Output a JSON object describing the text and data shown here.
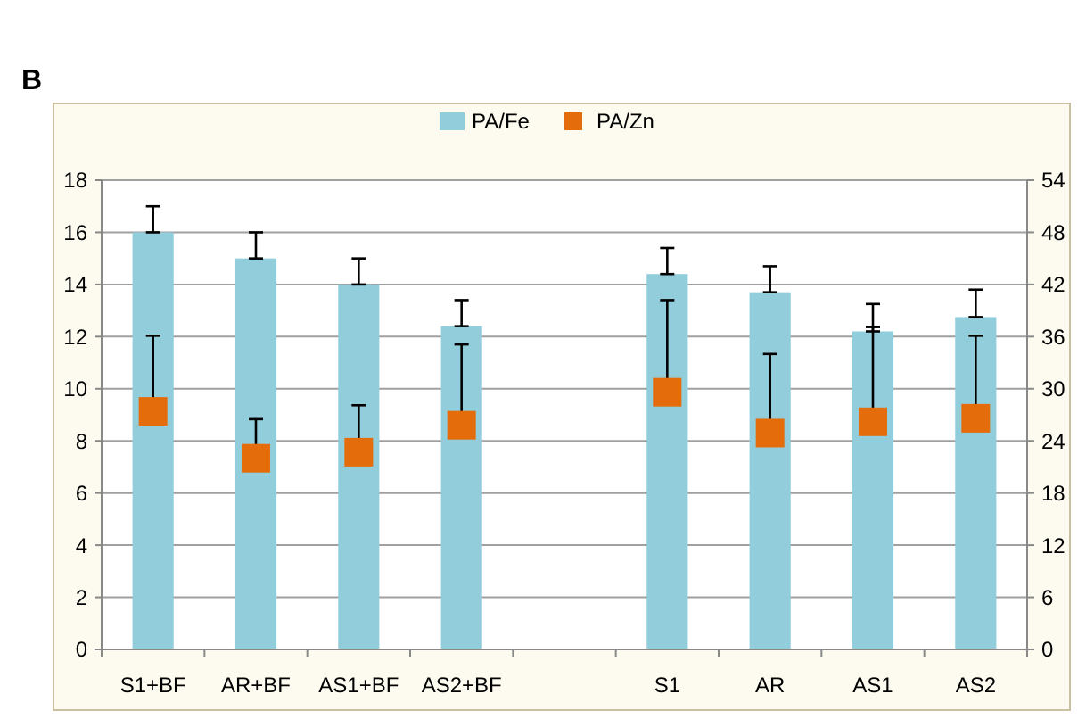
{
  "chart_data": {
    "type": "bar",
    "annotations": [
      "B"
    ],
    "categories": [
      "S1+BF",
      "AR+BF",
      "AS1+BF",
      "AS2+BF",
      null,
      "S1",
      "AR",
      "AS1",
      "AS2"
    ],
    "series": [
      {
        "name": "PA/Fe",
        "color": "#92cddc",
        "values": [
          16.0,
          15.0,
          14.0,
          12.4,
          null,
          14.4,
          13.7,
          12.2,
          12.75
        ],
        "errors": [
          [
            16.0,
            17.0
          ],
          [
            15.0,
            16.0
          ],
          [
            14.0,
            15.0
          ],
          [
            12.4,
            13.4
          ],
          null,
          [
            14.4,
            15.4
          ],
          [
            13.7,
            14.7
          ],
          [
            12.2,
            13.25
          ],
          [
            12.75,
            13.8
          ]
        ]
      },
      {
        "name": "PA/Zn",
        "type": "scatter",
        "axis": "y2",
        "marker": "square",
        "color": "#e46c0a",
        "values": [
          27.4,
          22.0,
          22.7,
          25.8,
          null,
          29.6,
          24.9,
          26.2,
          26.6
        ],
        "errors": [
          [
            27.4,
            36.1
          ],
          [
            22.0,
            26.5
          ],
          [
            22.7,
            28.1
          ],
          [
            25.8,
            35.1
          ],
          null,
          [
            29.6,
            40.2
          ],
          [
            24.9,
            34.0
          ],
          [
            26.2,
            37.1
          ],
          [
            26.6,
            36.1
          ]
        ]
      }
    ],
    "ylim": [
      0,
      18
    ],
    "yticks": [
      0,
      2,
      4,
      6,
      8,
      10,
      12,
      14,
      16,
      18
    ],
    "y2lim": [
      0,
      54
    ],
    "y2ticks": [
      0,
      6,
      12,
      18,
      24,
      30,
      36,
      42,
      48,
      54
    ],
    "grid": "y",
    "legend": "top"
  }
}
